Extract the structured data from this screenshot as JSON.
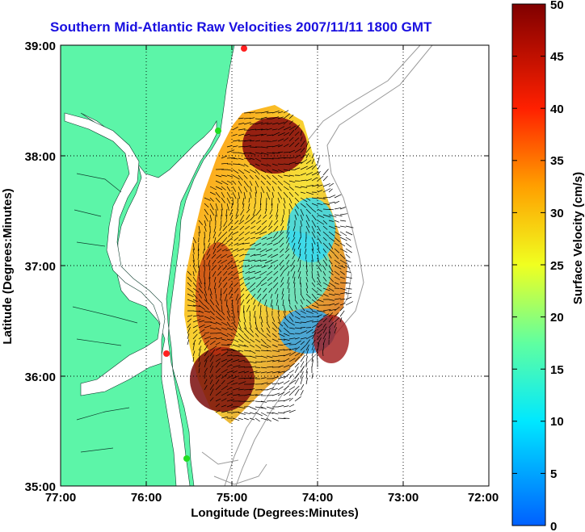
{
  "title": "Southern Mid-Atlantic Raw Velocities 2007/11/11 1800 GMT",
  "x_axis": {
    "label": "Longitude (Degrees:Minutes)",
    "ticks": [
      "77:00",
      "76:00",
      "75:00",
      "74:00",
      "73:00",
      "72:00"
    ]
  },
  "y_axis": {
    "label": "Latitude (Degrees:Minutes)",
    "ticks": [
      "39:00",
      "38:00",
      "37:00",
      "36:00",
      "35:00"
    ]
  },
  "colorbar": {
    "label": "Surface Velocity (cm/s)",
    "ticks": [
      "50",
      "45",
      "40",
      "35",
      "30",
      "25",
      "20",
      "15",
      "10",
      "5",
      "0"
    ],
    "range": [
      0,
      50
    ]
  },
  "colors": {
    "land": "#5cf5a8",
    "title": "#1a10e0",
    "station_red": "#ff2020",
    "station_green": "#22dd22"
  }
}
